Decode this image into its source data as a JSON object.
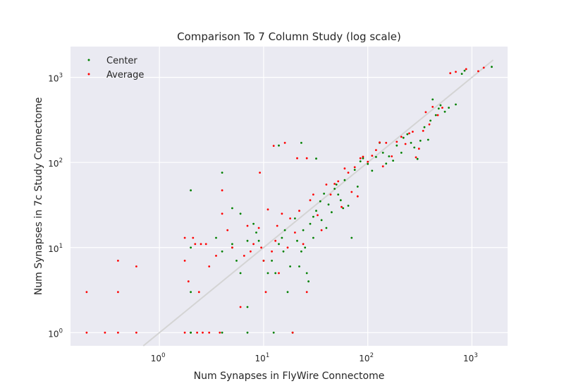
{
  "chart_data": {
    "type": "scatter",
    "title": "Comparison To 7 Column Study (log scale)",
    "xlabel": "Num Synapses in FlyWire Connectome",
    "ylabel": "Num Synapses in 7c Study Connectome",
    "xscale": "log",
    "yscale": "log",
    "xlim": [
      0.14,
      2200
    ],
    "ylim": [
      0.7,
      2300
    ],
    "grid": true,
    "legend_position": "top-left",
    "background_color": "#eaeaf2",
    "x_ticks": [
      {
        "value": 1,
        "base": "10",
        "exp": "0"
      },
      {
        "value": 10,
        "base": "10",
        "exp": "1"
      },
      {
        "value": 100,
        "base": "10",
        "exp": "2"
      },
      {
        "value": 1000,
        "base": "10",
        "exp": "3"
      }
    ],
    "y_ticks": [
      {
        "value": 1,
        "base": "10",
        "exp": "0"
      },
      {
        "value": 10,
        "base": "10",
        "exp": "1"
      },
      {
        "value": 100,
        "base": "10",
        "exp": "2"
      },
      {
        "value": 1000,
        "base": "10",
        "exp": "3"
      }
    ],
    "reference_line": {
      "points": [
        [
          0.6,
          0.6
        ],
        [
          1600,
          1600
        ]
      ],
      "color": "#d4d4d4"
    },
    "series": [
      {
        "name": "Center",
        "color": "#008000",
        "points": [
          [
            2.0,
            47
          ],
          [
            2.0,
            10
          ],
          [
            2.0,
            3
          ],
          [
            2.0,
            1
          ],
          [
            2.0,
            1
          ],
          [
            3.5,
            13
          ],
          [
            4.0,
            76
          ],
          [
            4.0,
            9
          ],
          [
            4.0,
            1
          ],
          [
            5.0,
            29
          ],
          [
            5.0,
            11
          ],
          [
            5.0,
            10
          ],
          [
            5.5,
            7
          ],
          [
            6.0,
            25
          ],
          [
            6.0,
            5
          ],
          [
            7.0,
            2
          ],
          [
            7.0,
            12
          ],
          [
            7.0,
            1
          ],
          [
            8.0,
            19
          ],
          [
            8.5,
            15
          ],
          [
            9.0,
            12
          ],
          [
            10.0,
            7
          ],
          [
            11.0,
            5
          ],
          [
            12.0,
            7
          ],
          [
            12.5,
            1
          ],
          [
            13.0,
            5
          ],
          [
            14.0,
            158
          ],
          [
            14.0,
            11
          ],
          [
            15.0,
            13
          ],
          [
            15.5,
            9
          ],
          [
            16.0,
            16
          ],
          [
            17.0,
            3
          ],
          [
            18.0,
            6
          ],
          [
            19.0,
            1
          ],
          [
            20.0,
            22
          ],
          [
            21.0,
            12
          ],
          [
            22.0,
            6
          ],
          [
            23.0,
            170
          ],
          [
            23.0,
            9
          ],
          [
            24.0,
            16
          ],
          [
            25.0,
            10
          ],
          [
            26.0,
            5
          ],
          [
            27.0,
            4
          ],
          [
            28.0,
            19
          ],
          [
            30.0,
            23
          ],
          [
            30.0,
            13
          ],
          [
            32.0,
            111
          ],
          [
            32.0,
            27
          ],
          [
            35.0,
            35
          ],
          [
            36.0,
            21
          ],
          [
            38.0,
            43
          ],
          [
            40.0,
            17
          ],
          [
            42.0,
            32
          ],
          [
            45.0,
            26
          ],
          [
            48.0,
            49
          ],
          [
            50.0,
            55
          ],
          [
            52.0,
            42
          ],
          [
            55.0,
            36
          ],
          [
            58.0,
            29
          ],
          [
            60.0,
            62
          ],
          [
            65.0,
            31
          ],
          [
            70.0,
            13
          ],
          [
            75.0,
            82
          ],
          [
            80.0,
            52
          ],
          [
            85.0,
            103
          ],
          [
            90.0,
            112
          ],
          [
            100.0,
            96
          ],
          [
            110.0,
            80
          ],
          [
            120.0,
            116
          ],
          [
            130.0,
            170
          ],
          [
            140.0,
            130
          ],
          [
            150.0,
            97
          ],
          [
            160.0,
            118
          ],
          [
            175.0,
            105
          ],
          [
            190.0,
            158
          ],
          [
            210.0,
            130
          ],
          [
            220.0,
            195
          ],
          [
            240.0,
            215
          ],
          [
            260.0,
            170
          ],
          [
            280.0,
            150
          ],
          [
            300.0,
            110
          ],
          [
            320.0,
            180
          ],
          [
            350.0,
            260
          ],
          [
            380.0,
            185
          ],
          [
            400.0,
            310
          ],
          [
            420.0,
            550
          ],
          [
            450.0,
            360
          ],
          [
            480.0,
            430
          ],
          [
            500.0,
            470
          ],
          [
            550.0,
            395
          ],
          [
            600.0,
            440
          ],
          [
            700.0,
            480
          ],
          [
            800.0,
            1100
          ],
          [
            850.0,
            1200
          ],
          [
            1550.0,
            1330
          ]
        ]
      },
      {
        "name": "Average",
        "color": "#ff0000",
        "points": [
          [
            0.2,
            3
          ],
          [
            0.2,
            1
          ],
          [
            0.3,
            1
          ],
          [
            0.4,
            7
          ],
          [
            0.4,
            3
          ],
          [
            0.4,
            1
          ],
          [
            0.6,
            6
          ],
          [
            0.6,
            1
          ],
          [
            1.75,
            13
          ],
          [
            1.75,
            7
          ],
          [
            1.75,
            1
          ],
          [
            1.9,
            4
          ],
          [
            2.1,
            13
          ],
          [
            2.2,
            11
          ],
          [
            2.3,
            1
          ],
          [
            2.4,
            3
          ],
          [
            2.5,
            11
          ],
          [
            2.6,
            1
          ],
          [
            2.8,
            11
          ],
          [
            3.0,
            6
          ],
          [
            3.0,
            1
          ],
          [
            3.5,
            8
          ],
          [
            3.8,
            1
          ],
          [
            4.0,
            47
          ],
          [
            4.0,
            25
          ],
          [
            4.5,
            16
          ],
          [
            5.0,
            10
          ],
          [
            6.0,
            2
          ],
          [
            6.5,
            8
          ],
          [
            7.0,
            18
          ],
          [
            7.5,
            9
          ],
          [
            8.0,
            11
          ],
          [
            9.0,
            17
          ],
          [
            9.2,
            76
          ],
          [
            9.5,
            10
          ],
          [
            10.0,
            7
          ],
          [
            10.5,
            3
          ],
          [
            11.0,
            28
          ],
          [
            12.0,
            9
          ],
          [
            12.5,
            157
          ],
          [
            13.0,
            12
          ],
          [
            13.5,
            18
          ],
          [
            14.0,
            5
          ],
          [
            15.0,
            25
          ],
          [
            16.0,
            170
          ],
          [
            17.0,
            10
          ],
          [
            18.0,
            22
          ],
          [
            19.0,
            1
          ],
          [
            20.0,
            15
          ],
          [
            21.0,
            112
          ],
          [
            22.0,
            27
          ],
          [
            24.0,
            11
          ],
          [
            26.0,
            3
          ],
          [
            26.0,
            112
          ],
          [
            28.0,
            36
          ],
          [
            30.0,
            42
          ],
          [
            33.0,
            24
          ],
          [
            36.0,
            16
          ],
          [
            40.0,
            55
          ],
          [
            44.0,
            42
          ],
          [
            48.0,
            56
          ],
          [
            52.0,
            60
          ],
          [
            56.0,
            30
          ],
          [
            60.0,
            85
          ],
          [
            65.0,
            76
          ],
          [
            70.0,
            45
          ],
          [
            75.0,
            88
          ],
          [
            80.0,
            40
          ],
          [
            85.0,
            112
          ],
          [
            90.0,
            117
          ],
          [
            100.0,
            102
          ],
          [
            110.0,
            120
          ],
          [
            120.0,
            140
          ],
          [
            130.0,
            172
          ],
          [
            140.0,
            90
          ],
          [
            150.0,
            170
          ],
          [
            170.0,
            118
          ],
          [
            190.0,
            175
          ],
          [
            210.0,
            200
          ],
          [
            230.0,
            165
          ],
          [
            250.0,
            220
          ],
          [
            270.0,
            230
          ],
          [
            290.0,
            115
          ],
          [
            310.0,
            145
          ],
          [
            340.0,
            235
          ],
          [
            360.0,
            390
          ],
          [
            390.0,
            280
          ],
          [
            420.0,
            450
          ],
          [
            470.0,
            360
          ],
          [
            520.0,
            440
          ],
          [
            620.0,
            1120
          ],
          [
            700.0,
            1160
          ],
          [
            880.0,
            1250
          ],
          [
            1150.0,
            1180
          ],
          [
            1300.0,
            1300
          ]
        ]
      }
    ]
  }
}
